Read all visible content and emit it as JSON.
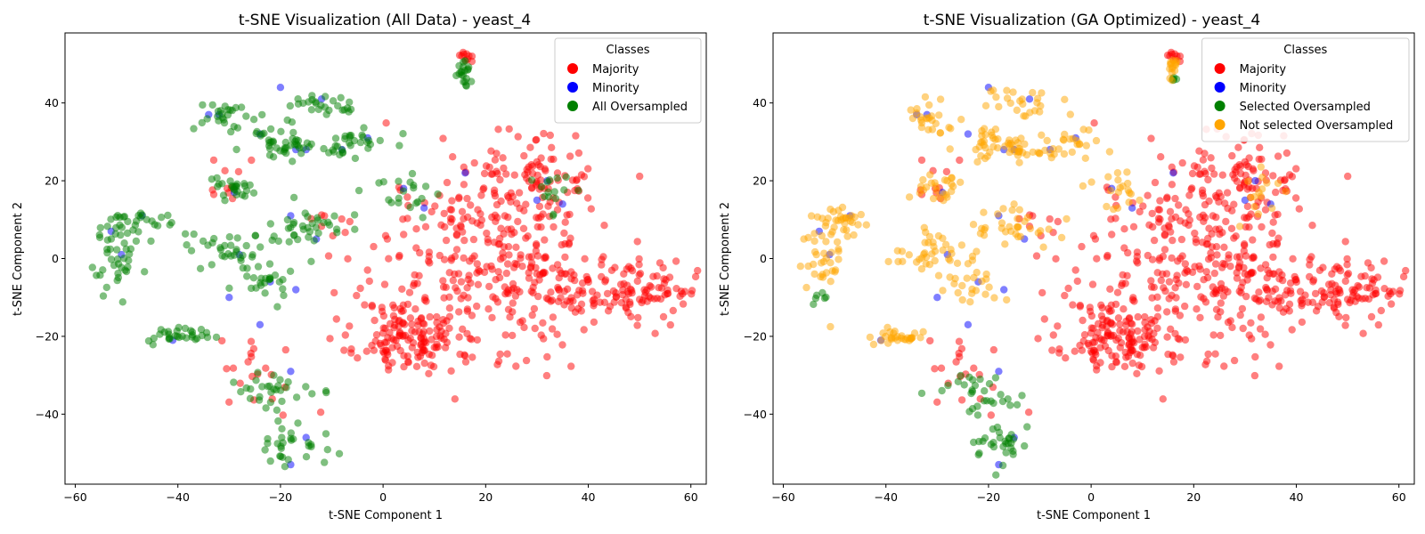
{
  "chart_data": [
    {
      "type": "scatter",
      "title": "t-SNE Visualization (All Data) - yeast_4",
      "xlabel": "t-SNE Component 1",
      "ylabel": "t-SNE Component 2",
      "xlim": [
        -62,
        63
      ],
      "ylim": [
        -58,
        58
      ],
      "xticks": [
        -60,
        -40,
        -20,
        0,
        20,
        40,
        60
      ],
      "yticks": [
        -40,
        -20,
        0,
        20,
        40
      ],
      "grid": false,
      "legend": {
        "title": "Classes",
        "placement": "top-right"
      },
      "series": [
        {
          "name": "Majority",
          "color": "#ff0000",
          "clusters": [
            {
              "cx": 5,
              "cy": -20,
              "sx": 5,
              "sy": 5,
              "n": 140
            },
            {
              "cx": 22,
              "cy": 0,
              "sx": 12,
              "sy": 12,
              "n": 320
            },
            {
              "cx": 48,
              "cy": -8,
              "sx": 7,
              "sy": 4,
              "n": 120
            },
            {
              "cx": 28,
              "cy": 22,
              "sx": 6,
              "sy": 5,
              "n": 80
            },
            {
              "cx": 16,
              "cy": 52,
              "sx": 0.8,
              "sy": 0.8,
              "n": 10
            },
            {
              "cx": -26,
              "cy": -30,
              "sx": 3,
              "sy": 6,
              "n": 20
            },
            {
              "cx": -10,
              "cy": 8,
              "sx": 2,
              "sy": 4,
              "n": 10
            },
            {
              "cx": -30,
              "cy": 20,
              "sx": 3,
              "sy": 3,
              "n": 10
            }
          ]
        },
        {
          "name": "Minority",
          "color": "#0000ff",
          "points": [
            [
              -53,
              7
            ],
            [
              -51,
              1
            ],
            [
              -41,
              -21
            ],
            [
              -34,
              37
            ],
            [
              -32,
              37
            ],
            [
              -28,
              1
            ],
            [
              -30,
              -10
            ],
            [
              -24,
              32
            ],
            [
              -22,
              -6
            ],
            [
              -24,
              -17
            ],
            [
              -20,
              44
            ],
            [
              -18,
              11
            ],
            [
              -18,
              -29
            ],
            [
              -18,
              -53
            ],
            [
              -15,
              28
            ],
            [
              -12,
              41
            ],
            [
              -13,
              5
            ],
            [
              -17,
              -8
            ],
            [
              -8,
              28
            ],
            [
              -3,
              31
            ],
            [
              4,
              18
            ],
            [
              8,
              13
            ],
            [
              16,
              22
            ],
            [
              30,
              15
            ],
            [
              32,
              20
            ],
            [
              35,
              14
            ],
            [
              -29,
              17
            ],
            [
              -47,
              11
            ],
            [
              -17,
              28
            ],
            [
              -15,
              -46
            ]
          ]
        },
        {
          "name": "All Oversampled",
          "color": "#008000",
          "clusters": [
            {
              "cx": -52,
              "cy": 0,
              "sx": 2,
              "sy": 5,
              "n": 40
            },
            {
              "cx": -48,
              "cy": 10,
              "sx": 3,
              "sy": 1.5,
              "n": 25
            },
            {
              "cx": -40,
              "cy": -20,
              "sx": 3,
              "sy": 1,
              "n": 30
            },
            {
              "cx": -31,
              "cy": 36,
              "sx": 2.5,
              "sy": 2,
              "n": 25
            },
            {
              "cx": -30,
              "cy": 18,
              "sx": 3,
              "sy": 2,
              "n": 25
            },
            {
              "cx": -30,
              "cy": 2,
              "sx": 4,
              "sy": 3,
              "n": 35
            },
            {
              "cx": -24,
              "cy": -6,
              "sx": 3,
              "sy": 3,
              "n": 25
            },
            {
              "cx": -22,
              "cy": -34,
              "sx": 4,
              "sy": 3,
              "n": 30
            },
            {
              "cx": -18,
              "cy": -48,
              "sx": 3,
              "sy": 3,
              "n": 30
            },
            {
              "cx": -20,
              "cy": 30,
              "sx": 3,
              "sy": 3,
              "n": 30
            },
            {
              "cx": -12,
              "cy": 40,
              "sx": 4,
              "sy": 2,
              "n": 25
            },
            {
              "cx": -13,
              "cy": 28,
              "sx": 5,
              "sy": 1,
              "n": 25
            },
            {
              "cx": -15,
              "cy": 8,
              "sx": 5,
              "sy": 3,
              "n": 35
            },
            {
              "cx": -4,
              "cy": 30,
              "sx": 3,
              "sy": 2,
              "n": 20
            },
            {
              "cx": 4,
              "cy": 18,
              "sx": 3,
              "sy": 3,
              "n": 20
            },
            {
              "cx": 16,
              "cy": 48,
              "sx": 0.6,
              "sy": 2,
              "n": 20
            },
            {
              "cx": 33,
              "cy": 17,
              "sx": 2,
              "sy": 3,
              "n": 15
            }
          ]
        }
      ]
    },
    {
      "type": "scatter",
      "title": "t-SNE Visualization (GA Optimized) - yeast_4",
      "xlabel": "t-SNE Component 1",
      "ylabel": "t-SNE Component 2",
      "xlim": [
        -62,
        63
      ],
      "ylim": [
        -58,
        58
      ],
      "xticks": [
        -60,
        -40,
        -20,
        0,
        20,
        40,
        60
      ],
      "yticks": [
        -40,
        -20,
        0,
        20,
        40
      ],
      "grid": false,
      "legend": {
        "title": "Classes",
        "placement": "top-right"
      },
      "series": [
        {
          "name": "Majority",
          "color": "#ff0000",
          "clusters": "same as chart 1"
        },
        {
          "name": "Minority",
          "color": "#0000ff",
          "points": "same as chart 1"
        },
        {
          "name": "Selected Oversampled",
          "color": "#008000",
          "clusters": [
            {
              "cx": -22,
              "cy": -34,
              "sx": 4,
              "sy": 3,
              "n": 30
            },
            {
              "cx": -18,
              "cy": -48,
              "sx": 3,
              "sy": 3,
              "n": 30
            },
            {
              "cx": -53,
              "cy": -10,
              "sx": 1,
              "sy": 1,
              "n": 6
            },
            {
              "cx": 16,
              "cy": 47,
              "sx": 0.4,
              "sy": 1,
              "n": 5
            }
          ]
        },
        {
          "name": "Not selected Oversampled",
          "color": "#ffa500",
          "clusters": [
            {
              "cx": -52,
              "cy": 0,
              "sx": 2,
              "sy": 5,
              "n": 40
            },
            {
              "cx": -48,
              "cy": 10,
              "sx": 3,
              "sy": 1.5,
              "n": 25
            },
            {
              "cx": -38,
              "cy": -20,
              "sx": 3,
              "sy": 1,
              "n": 30
            },
            {
              "cx": -31,
              "cy": 36,
              "sx": 2.5,
              "sy": 2,
              "n": 25
            },
            {
              "cx": -30,
              "cy": 18,
              "sx": 3,
              "sy": 2,
              "n": 25
            },
            {
              "cx": -30,
              "cy": 2,
              "sx": 4,
              "sy": 3,
              "n": 35
            },
            {
              "cx": -24,
              "cy": -6,
              "sx": 3,
              "sy": 3,
              "n": 25
            },
            {
              "cx": -20,
              "cy": 30,
              "sx": 3,
              "sy": 3,
              "n": 30
            },
            {
              "cx": -12,
              "cy": 40,
              "sx": 4,
              "sy": 2,
              "n": 25
            },
            {
              "cx": -13,
              "cy": 28,
              "sx": 5,
              "sy": 1,
              "n": 25
            },
            {
              "cx": -15,
              "cy": 8,
              "sx": 5,
              "sy": 3,
              "n": 35
            },
            {
              "cx": -4,
              "cy": 30,
              "sx": 3,
              "sy": 2,
              "n": 20
            },
            {
              "cx": 4,
              "cy": 18,
              "sx": 3,
              "sy": 3,
              "n": 20
            },
            {
              "cx": 16,
              "cy": 49,
              "sx": 0.6,
              "sy": 1.5,
              "n": 15
            },
            {
              "cx": 33,
              "cy": 17,
              "sx": 2,
              "sy": 3,
              "n": 15
            }
          ]
        }
      ]
    }
  ]
}
